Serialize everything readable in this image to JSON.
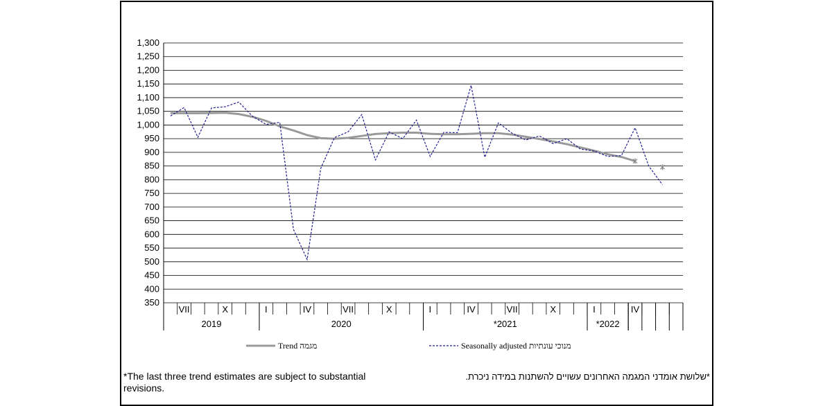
{
  "chart_data": {
    "type": "line",
    "title": "",
    "xlabel": "",
    "ylabel": "",
    "ylim": [
      350,
      1300
    ],
    "yticks": [
      "1,300",
      "1,250",
      "1,200",
      "1,150",
      "1,100",
      "1,050",
      "1,000",
      "950",
      "900",
      "850",
      "800",
      "750",
      "700",
      "650",
      "600",
      "550",
      "500",
      "450",
      "400",
      "350"
    ],
    "month_labels": [
      "",
      "VII",
      "",
      "",
      "X",
      "",
      "",
      "I",
      "",
      "",
      "IV",
      "",
      "",
      "VII",
      "",
      "",
      "X",
      "",
      "",
      "I",
      "",
      "",
      "IV",
      "",
      "",
      "VII",
      "",
      "",
      "X",
      "",
      "",
      "I",
      "",
      "",
      "IV",
      "",
      "",
      ""
    ],
    "year_labels": [
      {
        "label": "2019",
        "start": 0,
        "end": 7
      },
      {
        "label": "2020",
        "start": 7,
        "end": 19
      },
      {
        "label": "*2021",
        "start": 19,
        "end": 31
      },
      {
        "label": "*2022",
        "start": 31,
        "end": 34
      }
    ],
    "grid": true,
    "series": [
      {
        "name": "Trend מגמה",
        "style": "solid",
        "color": "#999999",
        "values": [
          1043,
          1043,
          1043,
          1044,
          1045,
          1040,
          1030,
          1015,
          995,
          980,
          963,
          952,
          950,
          953,
          960,
          967,
          970,
          972,
          972,
          968,
          966,
          966,
          968,
          970,
          970,
          965,
          957,
          949,
          940,
          930,
          918,
          906,
          893,
          883,
          868,
          null,
          846
        ]
      },
      {
        "name": "Seasonally adjusted מנוכי עונתיות",
        "style": "dashed",
        "color": "#1f1f8f",
        "values": [
          1033,
          1064,
          955,
          1062,
          1067,
          1084,
          1032,
          1002,
          1010,
          618,
          508,
          842,
          954,
          975,
          1038,
          872,
          975,
          950,
          1018,
          885,
          973,
          972,
          1145,
          882,
          1008,
          970,
          945,
          960,
          932,
          950,
          912,
          905,
          885,
          888,
          990,
          850,
          782
        ]
      }
    ]
  },
  "footnotes": {
    "english": "*The last three trend estimates are subject to substantial revisions.",
    "hebrew": "*שלושת אומדני המגמה האחרונים עשויים להשתנות במידה ניכרת."
  },
  "colors": {
    "trend": "#999999",
    "seasonal": "#1f1f8f",
    "grid": "#000000"
  }
}
